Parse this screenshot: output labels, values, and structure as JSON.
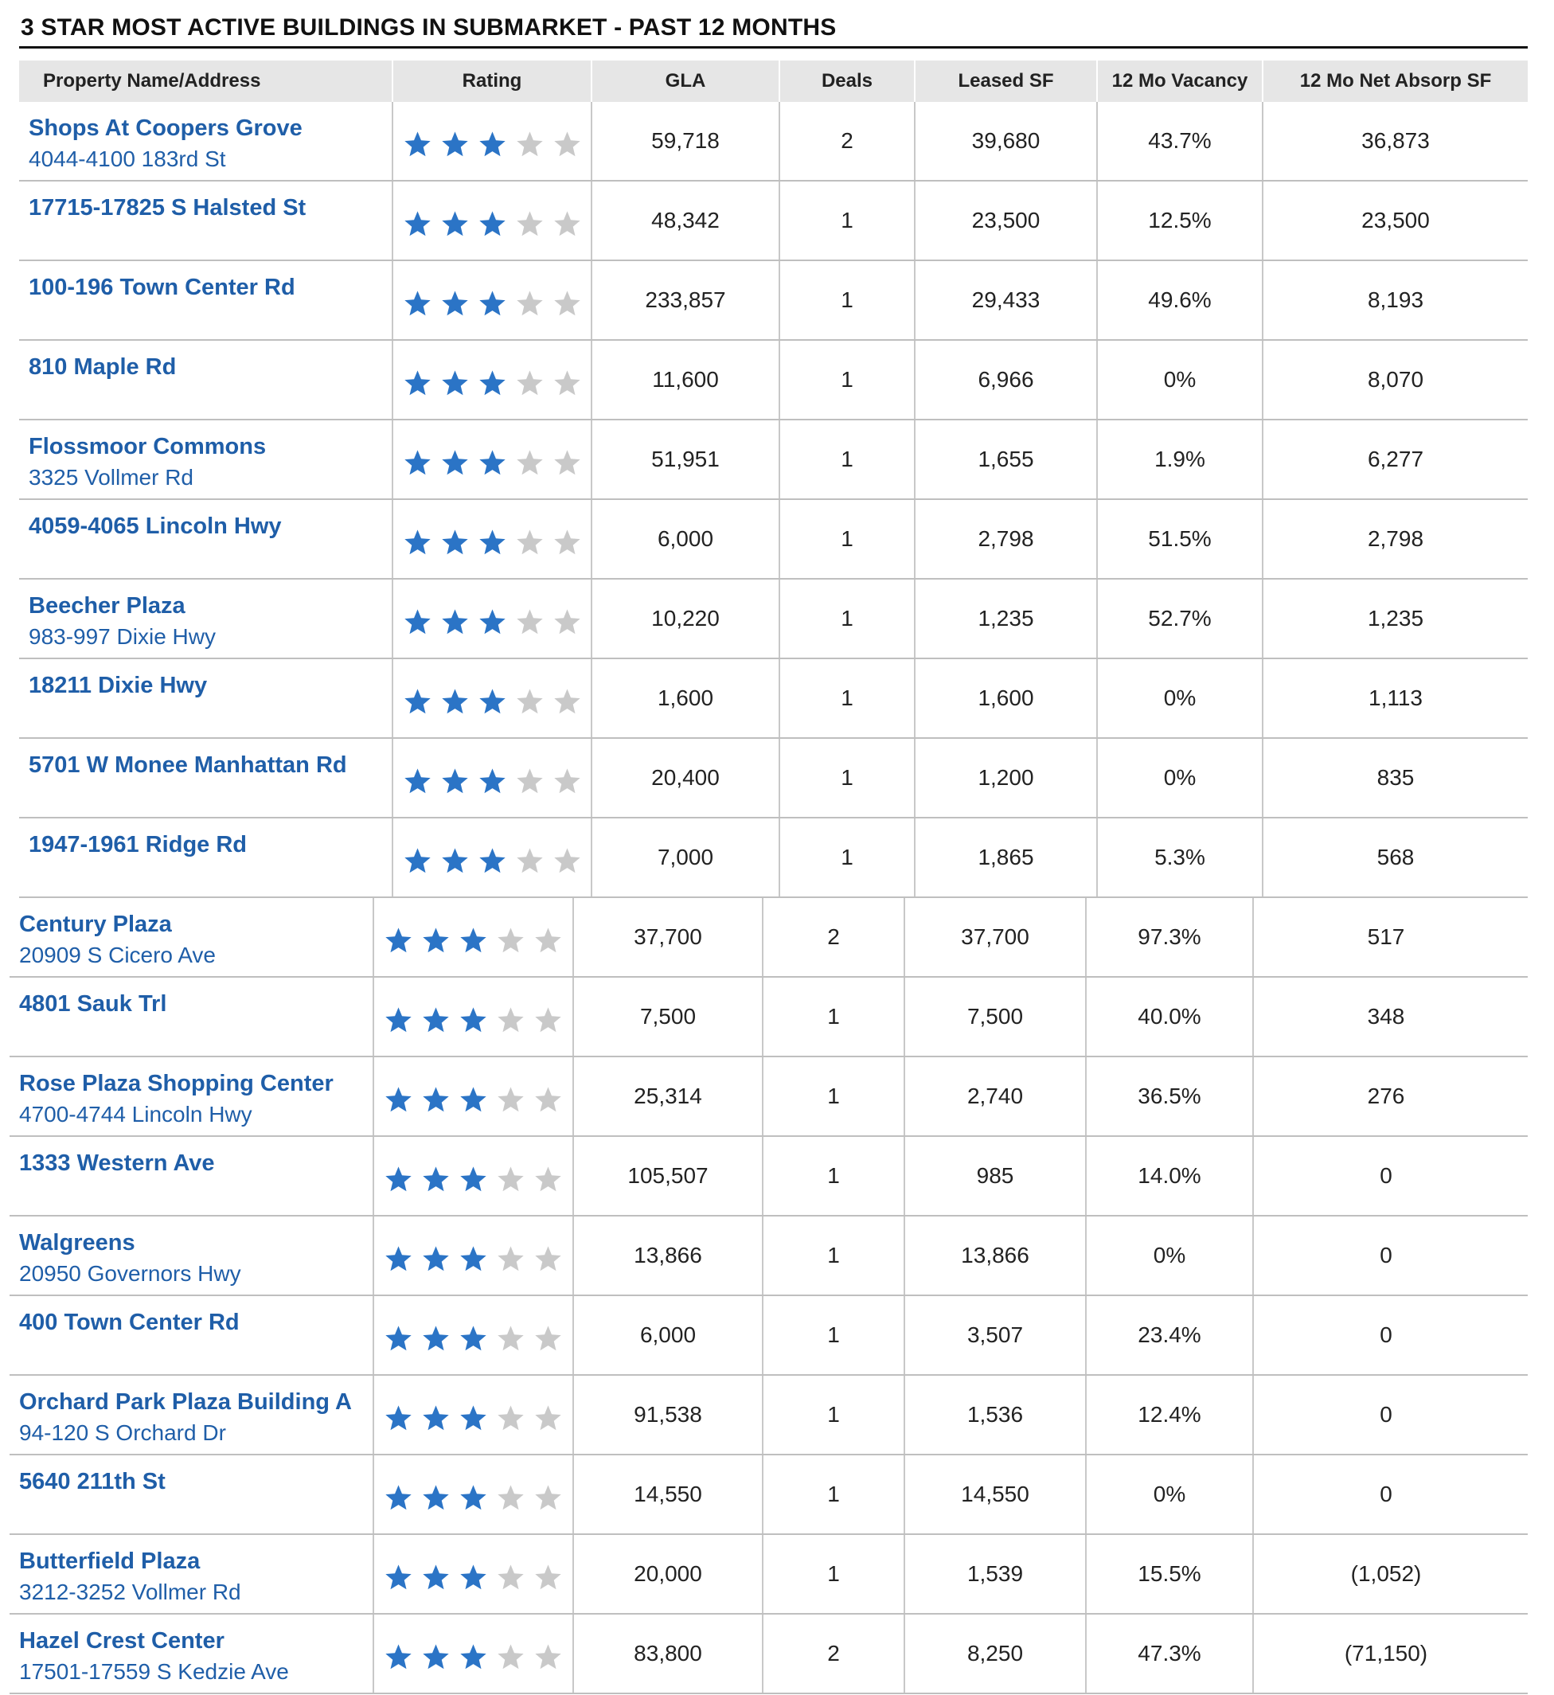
{
  "title": "3 STAR MOST ACTIVE BUILDINGS IN SUBMARKET - PAST 12 MONTHS",
  "headers": {
    "name": "Property Name/Address",
    "rating": "Rating",
    "gla": "GLA",
    "deals": "Deals",
    "leased": "Leased SF",
    "vacancy": "12 Mo Vacancy",
    "absorp": "12 Mo Net Absorp SF"
  },
  "colors": {
    "link": "#1f5ea8",
    "star_on": "#2b74c6",
    "star_off": "#c9c9c9",
    "negative": "#e8302a"
  },
  "rows": [
    {
      "name": "Shops At Coopers Grove",
      "address": "4044-4100 183rd St",
      "rating": 3,
      "gla": "59,718",
      "deals": "2",
      "leased": "39,680",
      "vacancy": "43.7%",
      "absorp": "36,873"
    },
    {
      "name": "17715-17825 S Halsted St",
      "address": "",
      "rating": 3,
      "gla": "48,342",
      "deals": "1",
      "leased": "23,500",
      "vacancy": "12.5%",
      "absorp": "23,500"
    },
    {
      "name": "100-196 Town Center Rd",
      "address": "",
      "rating": 3,
      "gla": "233,857",
      "deals": "1",
      "leased": "29,433",
      "vacancy": "49.6%",
      "absorp": "8,193"
    },
    {
      "name": "810 Maple Rd",
      "address": "",
      "rating": 3,
      "gla": "11,600",
      "deals": "1",
      "leased": "6,966",
      "vacancy": "0%",
      "absorp": "8,070"
    },
    {
      "name": "Flossmoor Commons",
      "address": "3325 Vollmer Rd",
      "rating": 3,
      "gla": "51,951",
      "deals": "1",
      "leased": "1,655",
      "vacancy": "1.9%",
      "absorp": "6,277"
    },
    {
      "name": "4059-4065 Lincoln Hwy",
      "address": "",
      "rating": 3,
      "gla": "6,000",
      "deals": "1",
      "leased": "2,798",
      "vacancy": "51.5%",
      "absorp": "2,798"
    },
    {
      "name": "Beecher Plaza",
      "address": "983-997 Dixie Hwy",
      "rating": 3,
      "gla": "10,220",
      "deals": "1",
      "leased": "1,235",
      "vacancy": "52.7%",
      "absorp": "1,235"
    },
    {
      "name": "18211 Dixie Hwy",
      "address": "",
      "rating": 3,
      "gla": "1,600",
      "deals": "1",
      "leased": "1,600",
      "vacancy": "0%",
      "absorp": "1,113"
    },
    {
      "name": "5701 W Monee Manhattan Rd",
      "address": "",
      "rating": 3,
      "gla": "20,400",
      "deals": "1",
      "leased": "1,200",
      "vacancy": "0%",
      "absorp": "835"
    },
    {
      "name": "1947-1961 Ridge Rd",
      "address": "",
      "rating": 3,
      "gla": "7,000",
      "deals": "1",
      "leased": "1,865",
      "vacancy": "5.3%",
      "absorp": "568"
    },
    {
      "name": "Century Plaza",
      "address": "20909 S Cicero Ave",
      "rating": 3,
      "gla": "37,700",
      "deals": "2",
      "leased": "37,700",
      "vacancy": "97.3%",
      "absorp": "517"
    },
    {
      "name": "4801 Sauk Trl",
      "address": "",
      "rating": 3,
      "gla": "7,500",
      "deals": "1",
      "leased": "7,500",
      "vacancy": "40.0%",
      "absorp": "348"
    },
    {
      "name": "Rose Plaza Shopping Center",
      "address": "4700-4744 Lincoln Hwy",
      "rating": 3,
      "gla": "25,314",
      "deals": "1",
      "leased": "2,740",
      "vacancy": "36.5%",
      "absorp": "276"
    },
    {
      "name": "1333 Western Ave",
      "address": "",
      "rating": 3,
      "gla": "105,507",
      "deals": "1",
      "leased": "985",
      "vacancy": "14.0%",
      "absorp": "0"
    },
    {
      "name": "Walgreens",
      "address": "20950 Governors Hwy",
      "rating": 3,
      "gla": "13,866",
      "deals": "1",
      "leased": "13,866",
      "vacancy": "0%",
      "absorp": "0"
    },
    {
      "name": "400 Town Center Rd",
      "address": "",
      "rating": 3,
      "gla": "6,000",
      "deals": "1",
      "leased": "3,507",
      "vacancy": "23.4%",
      "absorp": "0"
    },
    {
      "name": "Orchard Park Plaza Building A",
      "address": "94-120 S Orchard Dr",
      "rating": 3,
      "gla": "91,538",
      "deals": "1",
      "leased": "1,536",
      "vacancy": "12.4%",
      "absorp": "0"
    },
    {
      "name": "5640 211th St",
      "address": "",
      "rating": 3,
      "gla": "14,550",
      "deals": "1",
      "leased": "14,550",
      "vacancy": "0%",
      "absorp": "0"
    },
    {
      "name": "Butterfield Plaza",
      "address": "3212-3252 Vollmer Rd",
      "rating": 3,
      "gla": "20,000",
      "deals": "1",
      "leased": "1,539",
      "vacancy": "15.5%",
      "absorp": "(1,052)"
    },
    {
      "name": "Hazel Crest Center",
      "address": "17501-17559 S Kedzie Ave",
      "rating": 3,
      "gla": "83,800",
      "deals": "2",
      "leased": "8,250",
      "vacancy": "47.3%",
      "absorp": "(71,150)"
    }
  ]
}
